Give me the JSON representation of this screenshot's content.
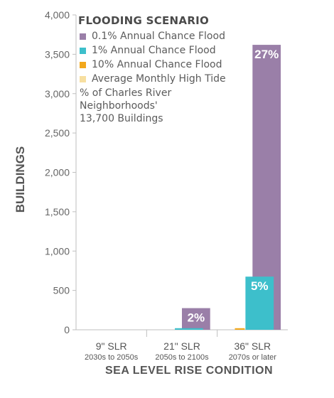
{
  "chart_data": {
    "type": "bar",
    "ylabel": "BUILDINGS",
    "xlabel": "SEA LEVEL RISE CONDITION",
    "ylim": [
      0,
      4000
    ],
    "yticks": [
      "0",
      "500",
      "1,000",
      "1,500",
      "2,000",
      "2,500",
      "3,000",
      "3,500",
      "4,000"
    ],
    "ytick_values": [
      0,
      500,
      1000,
      1500,
      2000,
      2500,
      3000,
      3500,
      4000
    ],
    "grid": false,
    "legend_position": "top-left",
    "legend_title": "FLOODING SCENARIO",
    "legend_note": "% of Charles River\nNeighborhoods'\n13,700 Buildings",
    "categories": [
      {
        "label": "9\" SLR",
        "sublabel": "2030s to 2050s"
      },
      {
        "label": "21\" SLR",
        "sublabel": "2050s to 2100s"
      },
      {
        "label": "36\" SLR",
        "sublabel": "2070s or later"
      }
    ],
    "series": [
      {
        "name": "0.1% Annual Chance Flood",
        "color": "#9a7fa8",
        "values": [
          0,
          275,
          3620
        ],
        "labels": [
          "",
          "2%",
          "27%"
        ]
      },
      {
        "name": "1% Annual Chance Flood",
        "color": "#3dbfcb",
        "values": [
          0,
          20,
          675
        ],
        "labels": [
          "",
          "",
          "5%"
        ]
      },
      {
        "name": "10% Annual Chance Flood",
        "color": "#f2a81d",
        "values": [
          0,
          0,
          20
        ],
        "labels": [
          "",
          "",
          ""
        ]
      },
      {
        "name": "Average Monthly High Tide",
        "color": "#f7dfa0",
        "values": [
          0,
          0,
          0
        ],
        "labels": [
          "",
          "",
          ""
        ]
      }
    ]
  }
}
